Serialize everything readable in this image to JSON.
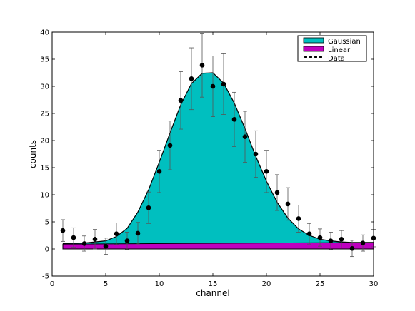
{
  "chart_data": {
    "type": "area",
    "title": "",
    "xlabel": "channel",
    "ylabel": "counts",
    "xlim": [
      0,
      30
    ],
    "ylim": [
      -5,
      40
    ],
    "xticks": [
      0,
      5,
      10,
      15,
      20,
      25,
      30
    ],
    "yticks": [
      -5,
      0,
      5,
      10,
      15,
      20,
      25,
      30,
      35,
      40
    ],
    "grid": false,
    "legend_position": "top-right",
    "colors": {
      "gaussian_fill": "#00bfbf",
      "linear_fill": "#bf00bf",
      "curve": "#000000",
      "points": "#000000",
      "errorbars": "#555555"
    },
    "series": [
      {
        "name": "Gaussian",
        "kind": "filled-area",
        "x": [
          1,
          3,
          5,
          6,
          7,
          8,
          9,
          10,
          11,
          12,
          13,
          14,
          15,
          16,
          17,
          18,
          19,
          20,
          21,
          22,
          23,
          24,
          25,
          26,
          27,
          28,
          29,
          30
        ],
        "y": [
          1.0,
          1.1,
          1.5,
          2.3,
          3.8,
          6.8,
          10.9,
          16.0,
          21.4,
          26.6,
          30.5,
          32.4,
          32.5,
          30.6,
          26.9,
          22.2,
          17.1,
          12.5,
          8.6,
          5.7,
          3.7,
          2.5,
          1.8,
          1.5,
          1.3,
          1.2,
          1.2,
          1.2
        ]
      },
      {
        "name": "Linear",
        "kind": "filled-area",
        "x": [
          1,
          30
        ],
        "y": [
          0.9,
          1.2
        ]
      },
      {
        "name": "Data",
        "kind": "points-with-errorbars",
        "x": [
          1,
          2,
          3,
          4,
          5,
          6,
          7,
          8,
          9,
          10,
          11,
          12,
          13,
          14,
          15,
          16,
          17,
          18,
          19,
          20,
          21,
          22,
          23,
          24,
          25,
          26,
          27,
          28,
          29,
          30
        ],
        "y": [
          3.4,
          2.1,
          1.0,
          1.8,
          0.5,
          2.8,
          1.5,
          2.9,
          7.6,
          14.3,
          19.1,
          27.4,
          31.4,
          33.9,
          30.0,
          30.4,
          23.9,
          20.7,
          17.5,
          14.3,
          10.4,
          8.3,
          5.6,
          2.8,
          2.1,
          1.5,
          1.8,
          0.1,
          1.1,
          2.0
        ],
        "err": [
          2.0,
          1.8,
          1.4,
          1.8,
          1.5,
          2.0,
          1.6,
          2.0,
          2.9,
          3.9,
          4.5,
          5.3,
          5.7,
          5.9,
          5.6,
          5.6,
          5.0,
          4.7,
          4.3,
          3.9,
          3.3,
          3.0,
          2.5,
          1.9,
          1.6,
          1.6,
          1.6,
          1.5,
          1.5,
          1.6
        ]
      }
    ]
  }
}
